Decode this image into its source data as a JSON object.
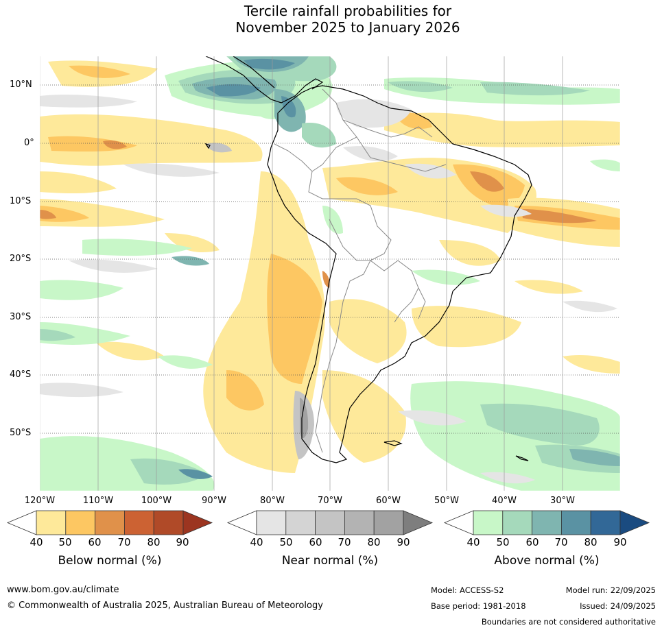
{
  "title": {
    "line1": "Tercile rainfall probabilities for",
    "line2": "November 2025 to January 2026"
  },
  "map": {
    "latitude_labels": [
      "10°N",
      "0°",
      "10°S",
      "20°S",
      "30°S",
      "40°S",
      "50°S"
    ],
    "longitude_labels": [
      "120°W",
      "110°W",
      "100°W",
      "90°W",
      "80°W",
      "70°W",
      "60°W",
      "50°W",
      "40°W",
      "30°W"
    ]
  },
  "legend": {
    "below": {
      "title": "Below normal (%)",
      "ticks": [
        "40",
        "50",
        "60",
        "70",
        "80",
        "90"
      ],
      "colors": [
        "#ffffff",
        "#fee99a",
        "#fdc762",
        "#e0914a",
        "#cc6233",
        "#b04a28",
        "#9c3520"
      ]
    },
    "near": {
      "title": "Near normal (%)",
      "ticks": [
        "40",
        "50",
        "60",
        "70",
        "80",
        "90"
      ],
      "colors": [
        "#ffffff",
        "#e5e5e5",
        "#d4d4d4",
        "#c4c4c4",
        "#b3b3b3",
        "#a2a2a2",
        "#7e7e7e"
      ]
    },
    "above": {
      "title": "Above normal (%)",
      "ticks": [
        "40",
        "50",
        "60",
        "70",
        "80",
        "90"
      ],
      "colors": [
        "#ffffff",
        "#c8f7c8",
        "#a5d9bb",
        "#7fb5b0",
        "#5a92a3",
        "#326897",
        "#1a4b80"
      ]
    }
  },
  "footer": {
    "website": "www.bom.gov.au/climate",
    "copyright": "© Commonwealth of Australia 2025, Australian Bureau of Meteorology",
    "model": "Model: ACCESS-S2",
    "base_period": "Base period: 1981-2018",
    "model_run": "Model run: 22/09/2025",
    "issued": "Issued: 24/09/2025",
    "disclaimer": "Boundaries are not considered authoritative"
  }
}
